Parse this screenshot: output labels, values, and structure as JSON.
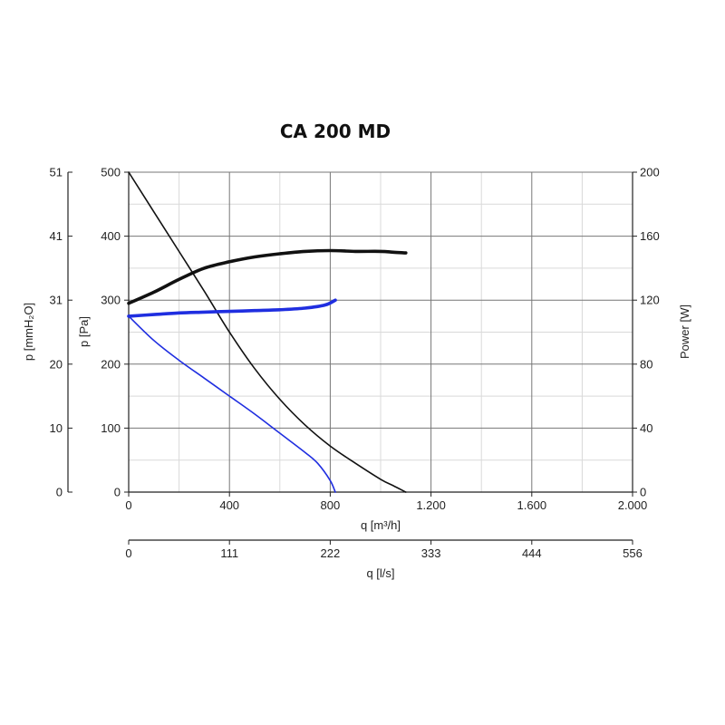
{
  "chart_data": {
    "type": "line",
    "title": "CA 200 MD",
    "x_axis": {
      "label": "q [m³/h]",
      "range": [
        0,
        2000
      ],
      "ticks": [
        0,
        400,
        800,
        1200,
        1600,
        2000
      ],
      "tick_labels": [
        "0",
        "400",
        "800",
        "1.200",
        "1.600",
        "2.000"
      ],
      "minor_step": 200
    },
    "x_axis_secondary": {
      "label": "q [l/s]",
      "tick_labels": [
        "0",
        "111",
        "222",
        "333",
        "444",
        "556"
      ]
    },
    "y_axis_left_outer": {
      "label": "p [mmH₂O]",
      "tick_labels": [
        "0",
        "10",
        "20",
        "31",
        "41",
        "51"
      ]
    },
    "y_axis_left": {
      "label": "p [Pa]",
      "range": [
        0,
        500
      ],
      "ticks": [
        0,
        100,
        200,
        300,
        400,
        500
      ],
      "tick_labels": [
        "0",
        "100",
        "200",
        "300",
        "400",
        "500"
      ],
      "minor_step": 50
    },
    "y_axis_right": {
      "label": "Power [W]",
      "range": [
        0,
        200
      ],
      "tick_labels": [
        "0",
        "40",
        "80",
        "120",
        "160",
        "200"
      ]
    },
    "grid": true,
    "series": [
      {
        "axis": "left",
        "color": "#111111",
        "width": 1.6,
        "x": [
          0,
          100,
          200,
          300,
          400,
          500,
          600,
          700,
          800,
          900,
          1000,
          1050,
          1100
        ],
        "y": [
          500,
          438,
          376,
          314,
          250,
          193,
          145,
          105,
          72,
          45,
          20,
          10,
          0
        ]
      },
      {
        "axis": "left",
        "color": "#1f2ee0",
        "width": 1.6,
        "x": [
          0,
          100,
          200,
          300,
          400,
          500,
          600,
          700,
          750,
          800,
          820
        ],
        "y": [
          275,
          237,
          206,
          178,
          150,
          122,
          92,
          62,
          45,
          18,
          0
        ]
      },
      {
        "axis": "right",
        "color": "#111111",
        "width": 3.6,
        "x": [
          0,
          100,
          200,
          300,
          400,
          500,
          600,
          700,
          800,
          900,
          1000,
          1050,
          1100
        ],
        "y": [
          118,
          125,
          133,
          140,
          144,
          147,
          149,
          150.5,
          151,
          150.5,
          150.5,
          150,
          149.5
        ]
      },
      {
        "axis": "right",
        "color": "#1f2ee0",
        "width": 3.6,
        "x": [
          0,
          100,
          200,
          300,
          400,
          500,
          600,
          700,
          780,
          820
        ],
        "y": [
          110,
          111,
          112,
          112.5,
          113,
          113.5,
          114,
          115,
          117,
          120
        ]
      }
    ]
  }
}
